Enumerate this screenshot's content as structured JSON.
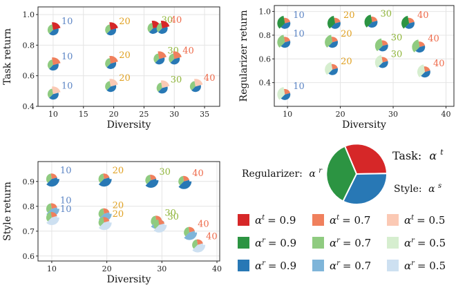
{
  "colors": {
    "task": {
      "0.9": "#d62728",
      "0.7": "#f0805d",
      "0.5": "#fbc9b4"
    },
    "reg": {
      "0.9": "#2c9442",
      "0.7": "#8fcb80",
      "0.5": "#d6eecf"
    },
    "style": {
      "0.9": "#2878b5",
      "0.7": "#7fb5d9",
      "0.5": "#cde0f1"
    },
    "label": {
      "10": "#5b84c4",
      "20": "#e0a020",
      "30": "#8fb53a",
      "40": "#ee6a4a"
    }
  },
  "chart_data": [
    {
      "type": "scatter",
      "xlabel": "Diversity",
      "ylabel": "Task return",
      "xlim": [
        7.5,
        37.5
      ],
      "ylim": [
        0.4,
        1.05
      ],
      "xticks": [
        "10",
        "15",
        "20",
        "25",
        "30",
        "35"
      ],
      "yticks": [
        "0.4",
        "0.6",
        "0.8",
        "1.0"
      ],
      "grid": true,
      "points": [
        {
          "x": 10,
          "y": 0.9,
          "level": "0.9",
          "label": "10"
        },
        {
          "x": 19.5,
          "y": 0.9,
          "level": "0.9",
          "label": "20"
        },
        {
          "x": 26.5,
          "y": 0.91,
          "level": "0.9",
          "label": "30"
        },
        {
          "x": 28,
          "y": 0.91,
          "level": "0.9",
          "label": "40"
        },
        {
          "x": 10,
          "y": 0.67,
          "level": "0.7",
          "label": "10"
        },
        {
          "x": 19.5,
          "y": 0.68,
          "level": "0.7",
          "label": "20"
        },
        {
          "x": 27.5,
          "y": 0.71,
          "level": "0.7",
          "label": "30"
        },
        {
          "x": 30,
          "y": 0.71,
          "level": "0.7",
          "label": "40"
        },
        {
          "x": 10,
          "y": 0.48,
          "level": "0.5",
          "label": "10"
        },
        {
          "x": 19.5,
          "y": 0.53,
          "level": "0.5",
          "label": "20"
        },
        {
          "x": 28,
          "y": 0.52,
          "level": "0.5",
          "label": "30"
        },
        {
          "x": 33.5,
          "y": 0.53,
          "level": "0.5",
          "label": "40"
        }
      ]
    },
    {
      "type": "scatter",
      "xlabel": "Diversity",
      "ylabel": "Regularizer return",
      "xlim": [
        7.5,
        41.5
      ],
      "ylim": [
        0.2,
        1.05
      ],
      "xticks": [
        "10",
        "20",
        "30",
        "40"
      ],
      "yticks": [
        "0.4",
        "0.6",
        "0.8",
        "1.0"
      ],
      "grid": true,
      "points": [
        {
          "x": 9.5,
          "y": 0.9,
          "level": "0.9",
          "label": "10"
        },
        {
          "x": 19,
          "y": 0.9,
          "level": "0.9",
          "label": "20"
        },
        {
          "x": 26,
          "y": 0.91,
          "level": "0.9",
          "label": "30"
        },
        {
          "x": 33,
          "y": 0.9,
          "level": "0.9",
          "label": "40"
        },
        {
          "x": 9.5,
          "y": 0.74,
          "level": "0.7",
          "label": "10"
        },
        {
          "x": 18.5,
          "y": 0.74,
          "level": "0.7",
          "label": "20"
        },
        {
          "x": 28,
          "y": 0.71,
          "level": "0.7",
          "label": "30"
        },
        {
          "x": 35,
          "y": 0.7,
          "level": "0.7",
          "label": "40"
        },
        {
          "x": 9.5,
          "y": 0.3,
          "level": "0.5",
          "label": "10"
        },
        {
          "x": 18.5,
          "y": 0.51,
          "level": "0.5",
          "label": "20"
        },
        {
          "x": 28,
          "y": 0.57,
          "level": "0.5",
          "label": "30"
        },
        {
          "x": 36,
          "y": 0.49,
          "level": "0.5",
          "label": "40"
        }
      ]
    },
    {
      "type": "scatter",
      "xlabel": "Diversity",
      "ylabel": "Style return",
      "xlim": [
        7.5,
        40.5
      ],
      "ylim": [
        0.58,
        0.98
      ],
      "xticks": [
        "10",
        "20",
        "30",
        "40"
      ],
      "yticks": [
        "0.6",
        "0.7",
        "0.8",
        "0.9"
      ],
      "grid": true,
      "points": [
        {
          "x": 10,
          "y": 0.91,
          "level": "0.9",
          "label": "10"
        },
        {
          "x": 19.5,
          "y": 0.91,
          "level": "0.9",
          "label": "20"
        },
        {
          "x": 28,
          "y": 0.905,
          "level": "0.9",
          "label": "30"
        },
        {
          "x": 34,
          "y": 0.9,
          "level": "0.9",
          "label": "40"
        },
        {
          "x": 10,
          "y": 0.79,
          "level": "0.7",
          "label": "10"
        },
        {
          "x": 19.5,
          "y": 0.77,
          "level": "0.7",
          "label": "20"
        },
        {
          "x": 29,
          "y": 0.74,
          "level": "0.7",
          "label": "30"
        },
        {
          "x": 35,
          "y": 0.695,
          "level": "0.7",
          "label": "40"
        },
        {
          "x": 10,
          "y": 0.755,
          "level": "0.5",
          "label": "10"
        },
        {
          "x": 19.5,
          "y": 0.735,
          "level": "0.5",
          "label": "20"
        },
        {
          "x": 29.5,
          "y": 0.725,
          "level": "0.5",
          "label": "30"
        },
        {
          "x": 36.5,
          "y": 0.645,
          "level": "0.5",
          "label": "40"
        }
      ]
    }
  ],
  "pie_legend": {
    "task_label": "Task:",
    "task_symbol": "α",
    "task_sup": "t",
    "reg_label": "Regularizer:",
    "reg_symbol": "α",
    "reg_sup": "r",
    "style_label": "Style:",
    "style_symbol": "α",
    "style_sup": "s"
  },
  "legend": [
    {
      "key": "task",
      "level": "0.9",
      "sup": "t",
      "text": "= 0.9"
    },
    {
      "key": "task",
      "level": "0.7",
      "sup": "t",
      "text": "= 0.7"
    },
    {
      "key": "task",
      "level": "0.5",
      "sup": "t",
      "text": "= 0.5"
    },
    {
      "key": "reg",
      "level": "0.9",
      "sup": "r",
      "text": "= 0.9"
    },
    {
      "key": "reg",
      "level": "0.7",
      "sup": "r",
      "text": "= 0.7"
    },
    {
      "key": "reg",
      "level": "0.5",
      "sup": "r",
      "text": "= 0.5"
    },
    {
      "key": "style",
      "level": "0.9",
      "sup": "r",
      "text": "= 0.9"
    },
    {
      "key": "style",
      "level": "0.7",
      "sup": "r",
      "text": "= 0.7"
    },
    {
      "key": "style",
      "level": "0.5",
      "sup": "r",
      "text": "= 0.5"
    }
  ],
  "legend_symbol": "α"
}
